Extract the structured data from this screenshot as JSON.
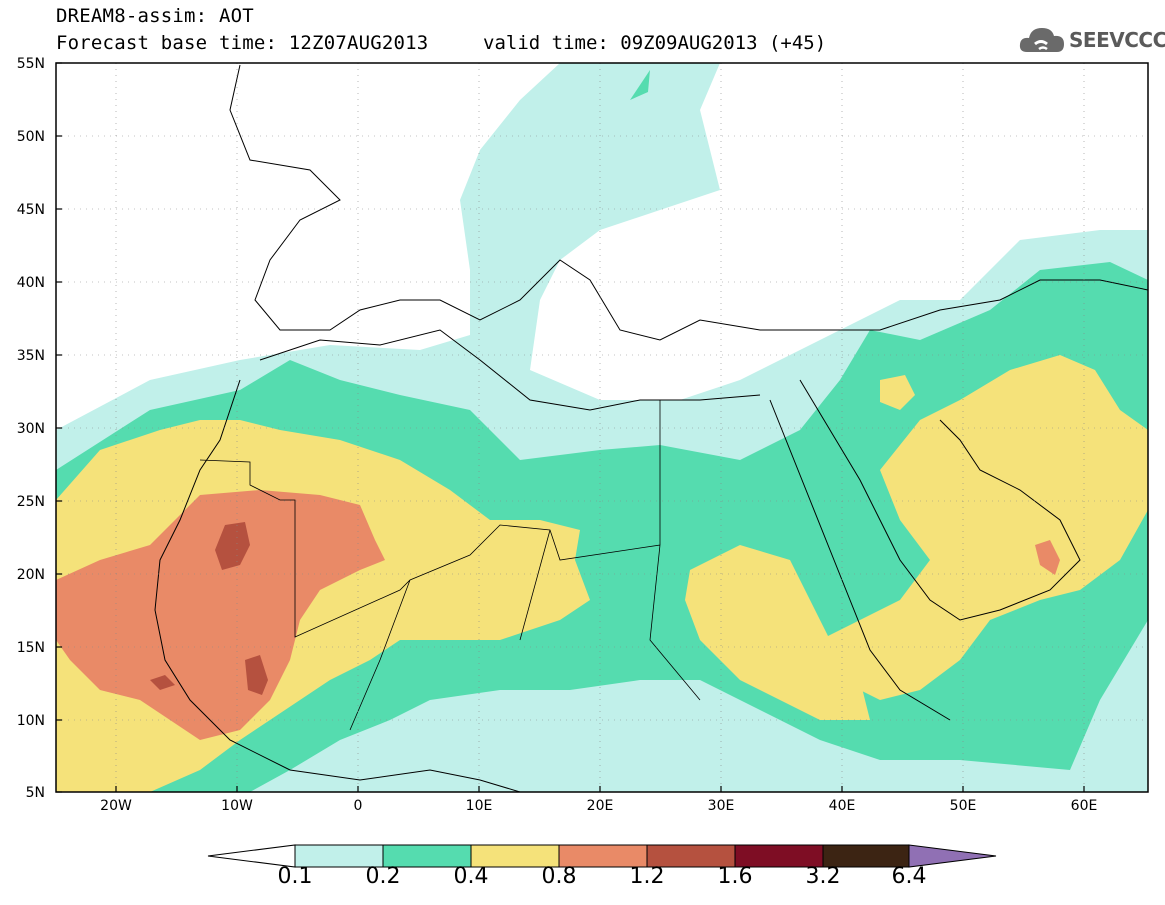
{
  "header": {
    "title": "DREAM8-assim: AOT",
    "base_time": "Forecast base time: 12Z07AUG2013",
    "valid_time": "valid time: 09Z09AUG2013 (+45)"
  },
  "logo": {
    "text": "SEEVCCC",
    "icon": "cloud-icon"
  },
  "axes": {
    "lat_labels": [
      "55N",
      "50N",
      "45N",
      "40N",
      "35N",
      "30N",
      "25N",
      "20N",
      "15N",
      "10N",
      "5N"
    ],
    "lon_labels": [
      "20W",
      "10W",
      "0",
      "10E",
      "20E",
      "30E",
      "40E",
      "50E",
      "60E"
    ]
  },
  "colorbar": {
    "labels": [
      "0.1",
      "0.2",
      "0.4",
      "0.8",
      "1.2",
      "1.6",
      "3.2",
      "6.4"
    ],
    "colors": [
      "#ffffff",
      "#c1f0ea",
      "#55dcaf",
      "#f5e27a",
      "#e98a67",
      "#b5513f",
      "#7e0d24",
      "#3c2413",
      "#9070b4"
    ]
  },
  "field_colors": {
    "c1": "#c1f0ea",
    "c2": "#55dcaf",
    "c3": "#f5e27a",
    "c4": "#e98a67",
    "c5": "#b5513f"
  }
}
